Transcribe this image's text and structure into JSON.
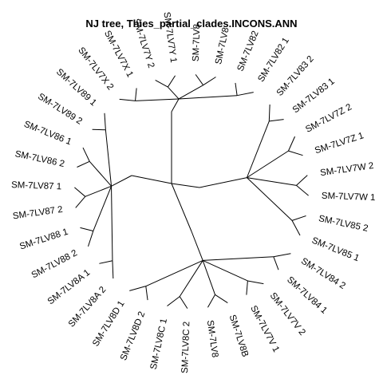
{
  "title": "NJ tree,  Thies_partial_clades.INCONS.ANN",
  "leaves": [
    "SM-7LV8",
    "SM-7LV82",
    "SM-7LV82 1",
    "SM-7LV83 2",
    "SM-7LV83 1",
    "SM-7LV7Z 2",
    "SM-7LV7Z 1",
    "SM-7LV7W 2",
    "SM-7LV7W 1",
    "SM-7LV85 2",
    "SM-7LV85 1",
    "SM-7LV84 2",
    "SM-7LV84 1",
    "SM-7LV7V 2",
    "SM-7LV7V 1",
    "SM-7LV8B",
    "SM-7LV8",
    "SM-7LV8C 2",
    "SM-7LV8C 1",
    "SM-7LV8D 2",
    "SM-7LV8D 1",
    "SM-7LV8A 2",
    "SM-7LV8A 1",
    "SM-7LV88 2",
    "SM-7LV88 1",
    "SM-7LV87 2",
    "SM-7LV87 1",
    "SM-7LV86 2",
    "SM-7LV86 1",
    "SM-7LV89 2",
    "SM-7LV89 1",
    "SM-7LV7X 2",
    "SM-7LV7X 1",
    "SM-7LV7Y 2",
    "SM-7LV7Y 1",
    "SM-7LV8"
  ]
}
